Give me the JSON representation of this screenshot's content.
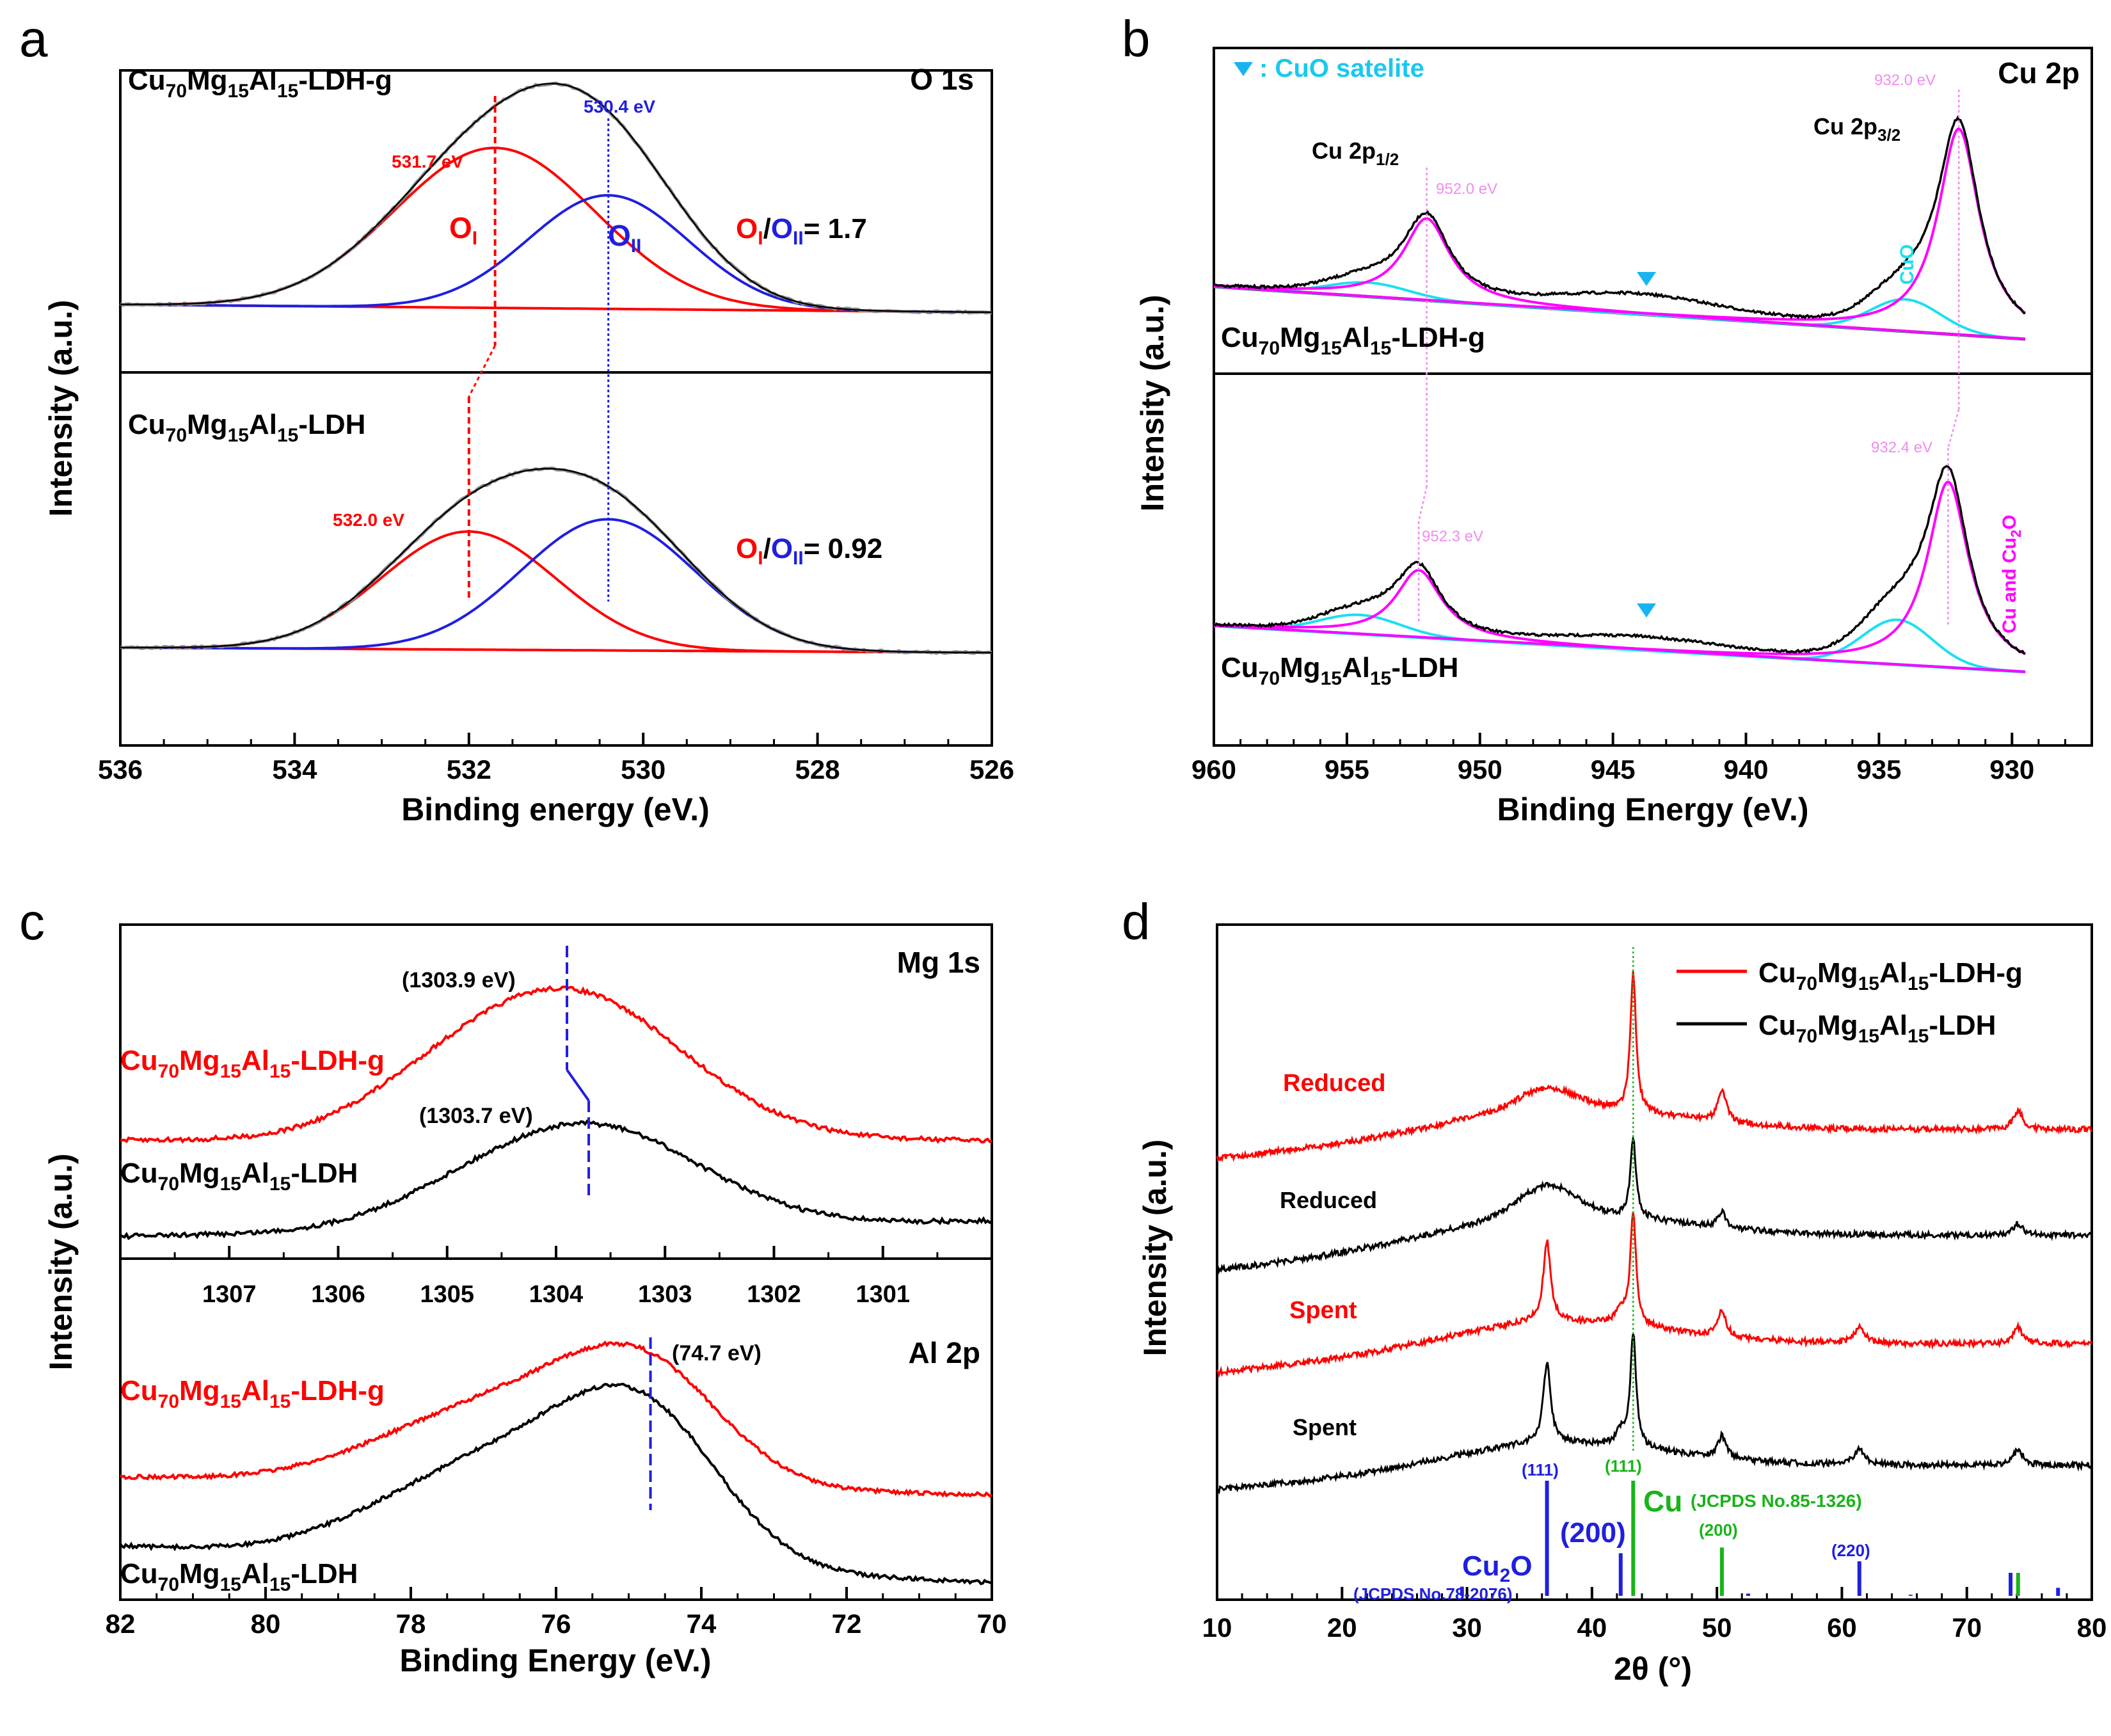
{
  "figure": {
    "panel_letters": [
      "a",
      "b",
      "c",
      "d"
    ]
  },
  "colors": {
    "red": "#ff0000",
    "blue": "#1f1fe0",
    "black": "#000000",
    "gray": "#8c8c8c",
    "magenta": "#ff00ff",
    "light_magenta": "#f08cf0",
    "cyan": "#19e0f0",
    "green": "#19b419"
  },
  "chart_data": [
    {
      "panel": "a",
      "type": "line",
      "title": "O 1s",
      "xlabel": "Binding energy (eV.)",
      "ylabel": "Intensity (a.u.)",
      "xlim": [
        536,
        526
      ],
      "xticks": [
        "536",
        "534",
        "532",
        "530",
        "528",
        "526"
      ],
      "series": [
        {
          "sample": "Cu70Mg15Al15-LDH-g",
          "name_parts": [
            "Cu",
            "70",
            "Mg",
            "15",
            "Al",
            "15",
            "-LDH-g"
          ],
          "components": [
            {
              "name": "OI",
              "center": 531.7,
              "sigma": 1.15,
              "height": 1.0
            },
            {
              "name": "OII",
              "center": 530.4,
              "sigma": 0.92,
              "height": 0.71
            }
          ],
          "peak_labels": [
            "531.7 eV",
            "530.4 eV"
          ],
          "ratio_label": "= 1.7"
        },
        {
          "sample": "Cu70Mg15Al15-LDH",
          "name_parts": [
            "Cu",
            "70",
            "Mg",
            "15",
            "Al",
            "15",
            "-LDH"
          ],
          "components": [
            {
              "name": "OI",
              "center": 532.0,
              "sigma": 1.0,
              "height": 0.9
            },
            {
              "name": "OII",
              "center": 530.4,
              "sigma": 1.0,
              "height": 1.0
            }
          ],
          "peak_labels": [
            "532.0 eV",
            "530.4 eV"
          ],
          "ratio_label": "= 0.92"
        }
      ],
      "component_labels": {
        "OI_main": "O",
        "OI_sub": "I",
        "OII_main": "O",
        "OII_sub": "II",
        "slash": "/"
      }
    },
    {
      "panel": "b",
      "type": "line",
      "title": "Cu 2p",
      "xlabel": "Binding Energy (eV.)",
      "ylabel": "Intensity (a.u.)",
      "xlim": [
        960,
        927
      ],
      "xticks": [
        "960",
        "955",
        "950",
        "945",
        "940",
        "935",
        "930"
      ],
      "legend_text": ": CuO satelite",
      "series": [
        {
          "sample": "Cu70Mg15Al15-LDH-g",
          "name_parts": [
            "Cu",
            "70",
            "Mg",
            "15",
            "Al",
            "15",
            "-LDH-g"
          ],
          "peaks": [
            {
              "name": "Cu 2p3/2",
              "center": 932.0
            },
            {
              "name": "Cu 2p1/2",
              "center": 952.0
            },
            {
              "name": "CuO",
              "center": 934.0
            },
            {
              "name": "satellite",
              "center": 944.0
            }
          ],
          "peak_labels": [
            "932.0 eV",
            "952.0 eV"
          ]
        },
        {
          "sample": "Cu70Mg15Al15-LDH",
          "name_parts": [
            "Cu",
            "70",
            "Mg",
            "15",
            "Al",
            "15",
            "-LDH"
          ],
          "peaks": [
            {
              "name": "Cu and Cu2O",
              "center": 932.4
            },
            {
              "name": "Cu 2p1/2",
              "center": 952.3
            },
            {
              "name": "CuO",
              "center": 934.3
            },
            {
              "name": "satellite",
              "center": 944.0
            }
          ],
          "peak_labels": [
            "932.4 eV",
            "952.3 eV"
          ]
        }
      ],
      "labels": {
        "cu2p12_main": "Cu 2p",
        "cu2p12_sub": "1/2",
        "cu2p32_main": "Cu 2p",
        "cu2p32_sub": "3/2",
        "cuo": "CuO",
        "cu_cu2o_a": "Cu and Cu",
        "cu_cu2o_b": "2",
        "cu_cu2o_c": "O"
      }
    },
    {
      "panel": "c",
      "type": "line",
      "subplots": [
        {
          "title": "Mg 1s",
          "xlim": [
            1308,
            1300
          ],
          "xticks": [
            "1307",
            "1306",
            "1305",
            "1304",
            "1303",
            "1302",
            "1301"
          ],
          "series": [
            {
              "sample": "Cu70Mg15Al15-LDH-g",
              "name_parts": [
                "Cu",
                "70",
                "Mg",
                "15",
                "Al",
                "15",
                "-LDH-g"
              ],
              "peak": 1303.9,
              "label": "(1303.9 eV)"
            },
            {
              "sample": "Cu70Mg15Al15-LDH",
              "name_parts": [
                "Cu",
                "70",
                "Mg",
                "15",
                "Al",
                "15",
                "-LDH"
              ],
              "peak": 1303.7,
              "label": "(1303.7 eV)"
            }
          ]
        },
        {
          "title": "Al 2p",
          "xlim": [
            82,
            70
          ],
          "xticks": [
            "82",
            "80",
            "78",
            "76",
            "74",
            "72",
            "70"
          ],
          "xlabel": "Binding Energy (eV.)",
          "series": [
            {
              "sample": "Cu70Mg15Al15-LDH-g",
              "name_parts": [
                "Cu",
                "70",
                "Mg",
                "15",
                "Al",
                "15",
                "-LDH-g"
              ],
              "peak": 74.7,
              "label": "(74.7 eV)"
            },
            {
              "sample": "Cu70Mg15Al15-LDH",
              "name_parts": [
                "Cu",
                "70",
                "Mg",
                "15",
                "Al",
                "15",
                "-LDH"
              ],
              "peak": 74.7
            }
          ]
        }
      ],
      "ylabel": "Intensity (a.u.)"
    },
    {
      "panel": "d",
      "type": "line",
      "xlabel": "2θ (°)",
      "ylabel": "Intensity (a.u.)",
      "xlim": [
        10,
        80
      ],
      "xticks": [
        "10",
        "20",
        "30",
        "40",
        "50",
        "60",
        "70",
        "80"
      ],
      "legend": [
        {
          "name_parts": [
            "Cu",
            "70",
            "Mg",
            "15",
            "Al",
            "15",
            "-LDH-g"
          ],
          "color": "#ff0000"
        },
        {
          "name_parts": [
            "Cu",
            "70",
            "Mg",
            "15",
            "Al",
            "15",
            "-LDH"
          ],
          "color": "#000000"
        }
      ],
      "series": [
        {
          "label": "Reduced",
          "sample": "Cu70Mg15Al15-LDH-g",
          "color": "#ff0000"
        },
        {
          "label": "Reduced",
          "sample": "Cu70Mg15Al15-LDH",
          "color": "#000000"
        },
        {
          "label": "Spent",
          "sample": "Cu70Mg15Al15-LDH-g",
          "color": "#ff0000"
        },
        {
          "label": "Spent",
          "sample": "Cu70Mg15Al15-LDH",
          "color": "#000000"
        }
      ],
      "reference": {
        "cu2o": {
          "label_main": "Cu",
          "label_sub": "2",
          "label_end": "O",
          "card": "(JCPDS No.78-2076)",
          "lines": [
            29.6,
            36.4,
            42.3,
            52.5,
            61.4,
            65.5,
            73.5,
            77.3
          ],
          "heights": [
            0.08,
            1.0,
            0.37,
            0.02,
            0.3,
            0.01,
            0.2,
            0.07
          ]
        },
        "cu": {
          "label": "Cu",
          "card": "(JCPDS No.85-1326)",
          "lines": [
            43.3,
            50.4,
            74.1
          ],
          "heights": [
            1.0,
            0.42,
            0.2
          ]
        },
        "hkl": {
          "cu2o_111": "(111)",
          "cu2o_200": "(200)",
          "cu2o_220": "(220)",
          "cu_111": "(111)",
          "cu_200": "(200)"
        }
      }
    }
  ]
}
